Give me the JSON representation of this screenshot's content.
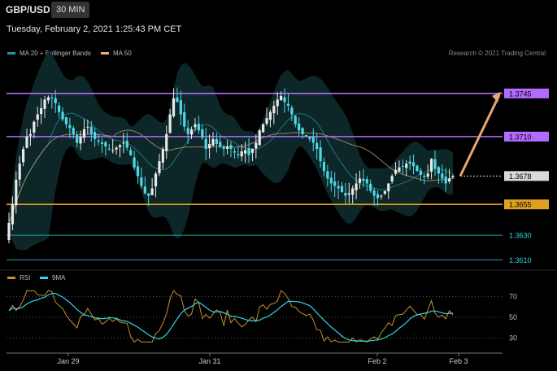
{
  "header": {
    "symbol": "GBP/USD",
    "timeframe": "30 MIN",
    "datetime": "Tuesday, February 2, 2021 1:25:43 PM CET"
  },
  "legend": {
    "items": [
      {
        "label": "MA 20 + Bollinger Bands",
        "color": "#1b9aa8"
      },
      {
        "label": "MA 50",
        "color": "#e8b07a"
      }
    ],
    "credit": "Research © 2021 Trading Central"
  },
  "rsi_legend": {
    "items": [
      {
        "label": "RSI",
        "color": "#c8902c"
      },
      {
        "label": "9MA",
        "color": "#2fd5e8"
      }
    ]
  },
  "colors": {
    "resistance": "#b36bff",
    "support": "#e0a020",
    "target_line": "#1aa0a8",
    "arrow": "#e8a870",
    "current": "#d9d9d9",
    "candle": "#e8e8e8",
    "candle_bear": "#4fd8e8",
    "band_fill": "#0e2a2b"
  },
  "chart_data": {
    "type": "candlestick",
    "price_levels": [
      {
        "value": 1.3745,
        "label": "1.3745",
        "kind": "resistance"
      },
      {
        "value": 1.371,
        "label": "1.3710",
        "kind": "resistance"
      },
      {
        "value": 1.3678,
        "label": "1.3678",
        "kind": "current"
      },
      {
        "value": 1.3655,
        "label": "1.3655",
        "kind": "support"
      },
      {
        "value": 1.363,
        "label": "1.3630",
        "kind": "target"
      },
      {
        "value": 1.361,
        "label": "1.3610",
        "kind": "target"
      }
    ],
    "price_range": [
      1.3603,
      1.3768
    ],
    "x_labels": [
      "Jan 29",
      "Jan 31",
      "Feb 2",
      "Feb 3"
    ],
    "close_series": [
      1.364,
      1.3655,
      1.3675,
      1.3688,
      1.37,
      1.371,
      1.3712,
      1.3722,
      1.3728,
      1.3733,
      1.374,
      1.3742,
      1.3741,
      1.3737,
      1.373,
      1.3724,
      1.372,
      1.3717,
      1.3712,
      1.3705,
      1.371,
      1.3716,
      1.3718,
      1.3712,
      1.3708,
      1.3706,
      1.3704,
      1.3702,
      1.37,
      1.3699,
      1.3701,
      1.3703,
      1.3705,
      1.3701,
      1.3695,
      1.3685,
      1.3678,
      1.367,
      1.3664,
      1.3662,
      1.3668,
      1.368,
      1.369,
      1.37,
      1.3712,
      1.3728,
      1.3741,
      1.3738,
      1.3728,
      1.3718,
      1.3712,
      1.3716,
      1.372,
      1.3715,
      1.3709,
      1.37,
      1.3704,
      1.3708,
      1.3704,
      1.3702,
      1.37,
      1.3702,
      1.37,
      1.3697,
      1.3695,
      1.3698,
      1.3699,
      1.3695,
      1.37,
      1.3705,
      1.3715,
      1.372,
      1.3725,
      1.373,
      1.3735,
      1.374,
      1.3743,
      1.3738,
      1.3735,
      1.3728,
      1.372,
      1.3715,
      1.3712,
      1.371,
      1.3708,
      1.3705,
      1.37,
      1.369,
      1.3682,
      1.3676,
      1.3672,
      1.367,
      1.3668,
      1.3665,
      1.3662,
      1.3664,
      1.3668,
      1.3672,
      1.3676,
      1.3674,
      1.3672,
      1.3666,
      1.3662,
      1.366,
      1.3662,
      1.3666,
      1.3672,
      1.3678,
      1.3683,
      1.3685,
      1.3686,
      1.3688,
      1.3688,
      1.3686,
      1.3682,
      1.3679,
      1.3677,
      1.368,
      1.3692,
      1.3684,
      1.368,
      1.3676,
      1.3672,
      1.3676,
      1.3678
    ],
    "rsi": {
      "levels": [
        30,
        50,
        70
      ],
      "range": [
        20,
        80
      ]
    }
  }
}
